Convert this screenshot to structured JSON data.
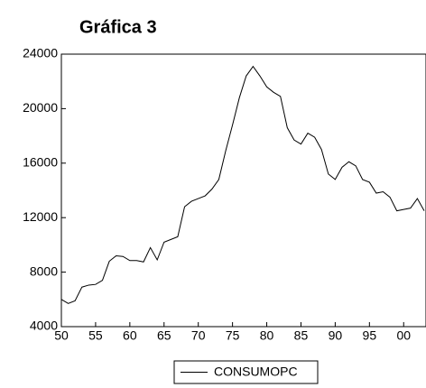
{
  "chart_data": {
    "type": "line",
    "title": "Gráfica 3",
    "x": [
      50,
      51,
      52,
      53,
      54,
      55,
      56,
      57,
      58,
      59,
      60,
      61,
      62,
      63,
      64,
      65,
      66,
      67,
      68,
      69,
      70,
      71,
      72,
      73,
      74,
      75,
      76,
      77,
      78,
      79,
      80,
      81,
      82,
      83,
      84,
      85,
      86,
      87,
      88,
      89,
      90,
      91,
      92,
      93,
      94,
      95,
      96,
      97,
      98,
      99,
      100,
      101,
      102,
      103
    ],
    "series": [
      {
        "name": "CONSUMOPC",
        "color": "#000000",
        "values": [
          6000,
          5700,
          5900,
          6900,
          7050,
          7100,
          7400,
          8800,
          9200,
          9150,
          8850,
          8850,
          8750,
          9800,
          8900,
          10200,
          10400,
          10600,
          12800,
          13200,
          13400,
          13600,
          14100,
          14800,
          16900,
          18800,
          20800,
          22400,
          23100,
          22400,
          21600,
          21200,
          20900,
          18600,
          17700,
          17400,
          18200,
          17900,
          17000,
          15200,
          14800,
          15700,
          16100,
          15800,
          14800,
          14600,
          13800,
          13900,
          13500,
          12500,
          12600,
          12700,
          13400,
          12500
        ]
      }
    ],
    "xlim": [
      50,
      103
    ],
    "ylim": [
      4000,
      24000
    ],
    "xticks": [
      50,
      55,
      60,
      65,
      70,
      75,
      80,
      85,
      90,
      95,
      {
        "value": 100,
        "label": "00"
      }
    ],
    "yticks": [
      4000,
      8000,
      12000,
      16000,
      20000,
      24000
    ]
  }
}
